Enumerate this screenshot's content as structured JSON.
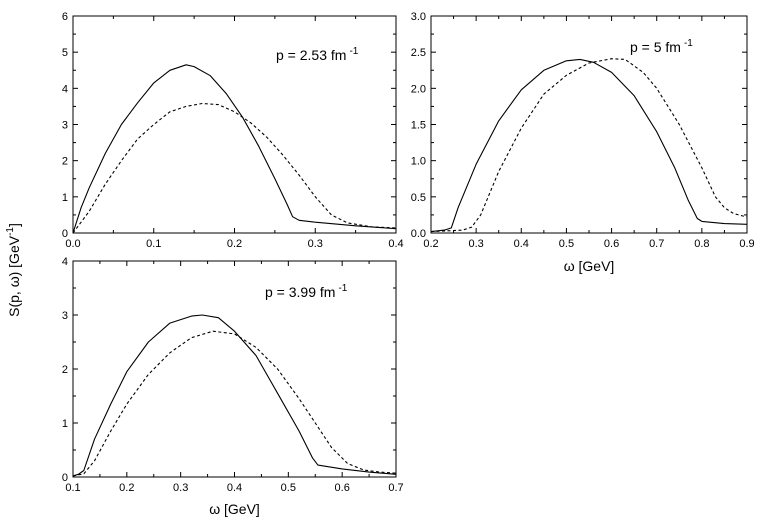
{
  "figure": {
    "shared_ylabel": "S(p, ω) [GeV",
    "shared_ylabel_sup": "-1",
    "shared_ylabel_close": "]"
  },
  "chart_data": [
    {
      "type": "line",
      "annotation": "p = 2.53 fm",
      "annotation_sup": "-1",
      "xlabel": "",
      "ylabel": "",
      "xlim": [
        0,
        0.4
      ],
      "ylim": [
        0,
        6
      ],
      "xticks": [
        "0.0",
        "0.1",
        "0.2",
        "0.3",
        "0.4"
      ],
      "yticks": [
        "0",
        "1",
        "2",
        "3",
        "4",
        "5",
        "6"
      ],
      "series": [
        {
          "style": "solid",
          "points": [
            [
              0.0,
              0.0
            ],
            [
              0.01,
              0.7
            ],
            [
              0.02,
              1.25
            ],
            [
              0.04,
              2.2
            ],
            [
              0.06,
              3.0
            ],
            [
              0.08,
              3.6
            ],
            [
              0.1,
              4.15
            ],
            [
              0.12,
              4.5
            ],
            [
              0.14,
              4.65
            ],
            [
              0.15,
              4.6
            ],
            [
              0.17,
              4.35
            ],
            [
              0.19,
              3.85
            ],
            [
              0.21,
              3.2
            ],
            [
              0.23,
              2.4
            ],
            [
              0.25,
              1.5
            ],
            [
              0.265,
              0.8
            ],
            [
              0.272,
              0.45
            ],
            [
              0.28,
              0.35
            ],
            [
              0.3,
              0.3
            ],
            [
              0.35,
              0.2
            ],
            [
              0.4,
              0.12
            ]
          ]
        },
        {
          "style": "dashed",
          "points": [
            [
              0.0,
              0.0
            ],
            [
              0.02,
              0.6
            ],
            [
              0.04,
              1.35
            ],
            [
              0.06,
              2.0
            ],
            [
              0.08,
              2.6
            ],
            [
              0.1,
              3.0
            ],
            [
              0.12,
              3.35
            ],
            [
              0.14,
              3.5
            ],
            [
              0.16,
              3.58
            ],
            [
              0.18,
              3.55
            ],
            [
              0.2,
              3.35
            ],
            [
              0.22,
              3.05
            ],
            [
              0.24,
              2.65
            ],
            [
              0.26,
              2.15
            ],
            [
              0.28,
              1.6
            ],
            [
              0.3,
              1.0
            ],
            [
              0.32,
              0.5
            ],
            [
              0.34,
              0.28
            ],
            [
              0.37,
              0.17
            ],
            [
              0.4,
              0.14
            ]
          ]
        }
      ]
    },
    {
      "type": "line",
      "annotation": "p = 5 fm",
      "annotation_sup": "-1",
      "xlabel": "ω [GeV]",
      "ylabel": "",
      "xlim": [
        0.2,
        0.9
      ],
      "ylim": [
        0,
        3.0
      ],
      "xticks": [
        "0.2",
        "0.3",
        "0.4",
        "0.5",
        "0.6",
        "0.7",
        "0.8",
        "0.9"
      ],
      "yticks": [
        "0.0",
        "0.5",
        "1.0",
        "1.5",
        "2.0",
        "2.5",
        "3.0"
      ],
      "series": [
        {
          "style": "solid",
          "points": [
            [
              0.2,
              0.02
            ],
            [
              0.23,
              0.04
            ],
            [
              0.245,
              0.07
            ],
            [
              0.26,
              0.35
            ],
            [
              0.3,
              0.95
            ],
            [
              0.35,
              1.55
            ],
            [
              0.4,
              1.98
            ],
            [
              0.45,
              2.25
            ],
            [
              0.5,
              2.38
            ],
            [
              0.53,
              2.4
            ],
            [
              0.56,
              2.36
            ],
            [
              0.6,
              2.22
            ],
            [
              0.65,
              1.9
            ],
            [
              0.7,
              1.4
            ],
            [
              0.74,
              0.9
            ],
            [
              0.77,
              0.45
            ],
            [
              0.79,
              0.2
            ],
            [
              0.8,
              0.16
            ],
            [
              0.85,
              0.13
            ],
            [
              0.9,
              0.12
            ]
          ]
        },
        {
          "style": "dashed",
          "points": [
            [
              0.2,
              0.02
            ],
            [
              0.27,
              0.04
            ],
            [
              0.29,
              0.08
            ],
            [
              0.31,
              0.25
            ],
            [
              0.35,
              0.85
            ],
            [
              0.4,
              1.45
            ],
            [
              0.45,
              1.92
            ],
            [
              0.5,
              2.18
            ],
            [
              0.55,
              2.35
            ],
            [
              0.6,
              2.41
            ],
            [
              0.63,
              2.4
            ],
            [
              0.67,
              2.22
            ],
            [
              0.7,
              2.0
            ],
            [
              0.75,
              1.5
            ],
            [
              0.8,
              0.9
            ],
            [
              0.83,
              0.5
            ],
            [
              0.85,
              0.35
            ],
            [
              0.87,
              0.27
            ],
            [
              0.9,
              0.22
            ]
          ]
        }
      ]
    },
    {
      "type": "line",
      "annotation": "p = 3.99 fm",
      "annotation_sup": "-1",
      "xlabel": "ω [GeV]",
      "ylabel": "",
      "xlim": [
        0.1,
        0.7
      ],
      "ylim": [
        0,
        4
      ],
      "xticks": [
        "0.1",
        "0.2",
        "0.3",
        "0.4",
        "0.5",
        "0.6",
        "0.7"
      ],
      "yticks": [
        "0",
        "1",
        "2",
        "3",
        "4"
      ],
      "series": [
        {
          "style": "solid",
          "points": [
            [
              0.1,
              0.02
            ],
            [
              0.11,
              0.05
            ],
            [
              0.12,
              0.12
            ],
            [
              0.14,
              0.7
            ],
            [
              0.17,
              1.35
            ],
            [
              0.2,
              1.95
            ],
            [
              0.24,
              2.5
            ],
            [
              0.28,
              2.85
            ],
            [
              0.32,
              2.98
            ],
            [
              0.34,
              3.0
            ],
            [
              0.37,
              2.95
            ],
            [
              0.4,
              2.7
            ],
            [
              0.44,
              2.25
            ],
            [
              0.48,
              1.55
            ],
            [
              0.52,
              0.85
            ],
            [
              0.545,
              0.35
            ],
            [
              0.555,
              0.22
            ],
            [
              0.6,
              0.15
            ],
            [
              0.65,
              0.09
            ],
            [
              0.7,
              0.05
            ]
          ]
        },
        {
          "style": "dashed",
          "points": [
            [
              0.1,
              0.02
            ],
            [
              0.12,
              0.06
            ],
            [
              0.14,
              0.3
            ],
            [
              0.17,
              0.85
            ],
            [
              0.2,
              1.35
            ],
            [
              0.24,
              1.9
            ],
            [
              0.28,
              2.3
            ],
            [
              0.32,
              2.58
            ],
            [
              0.36,
              2.7
            ],
            [
              0.4,
              2.65
            ],
            [
              0.44,
              2.4
            ],
            [
              0.48,
              2.0
            ],
            [
              0.52,
              1.45
            ],
            [
              0.55,
              1.0
            ],
            [
              0.58,
              0.55
            ],
            [
              0.61,
              0.25
            ],
            [
              0.64,
              0.13
            ],
            [
              0.67,
              0.09
            ],
            [
              0.7,
              0.07
            ]
          ]
        }
      ]
    }
  ]
}
